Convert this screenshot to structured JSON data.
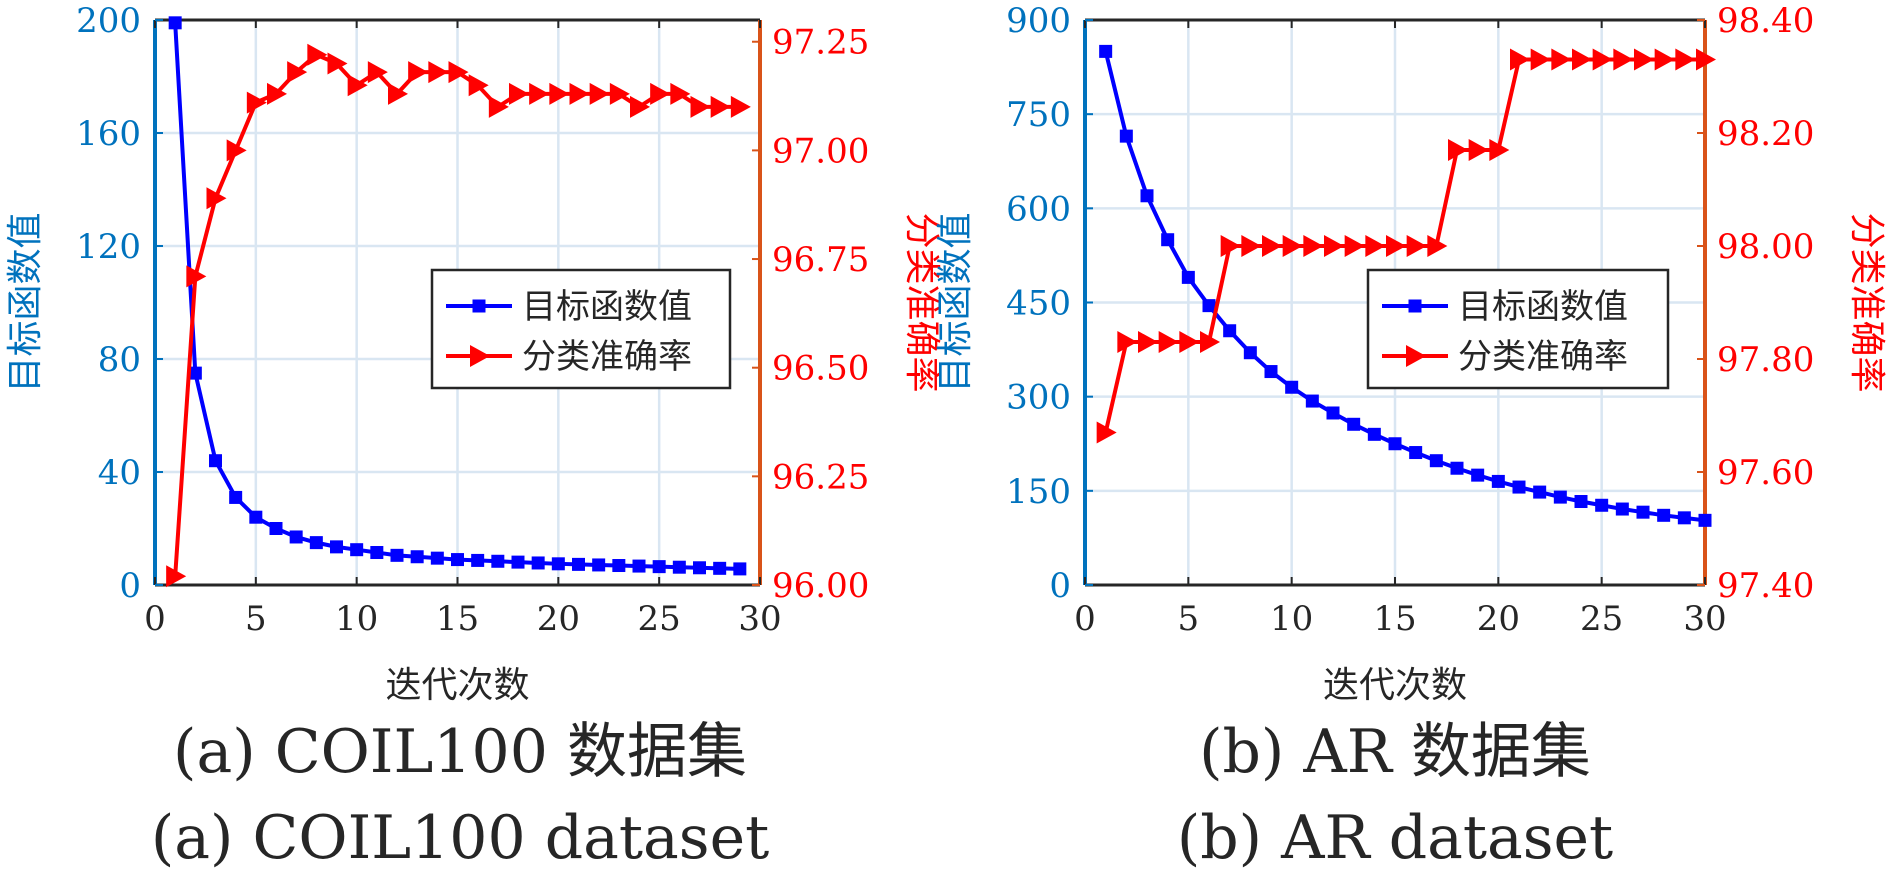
{
  "colors": {
    "left_axis": "#0072BD",
    "right_axis": "#D95319",
    "objective": "#0000FF",
    "accuracy": "#FF0000",
    "grid": "#D9E6F2"
  },
  "chart_data": [
    {
      "type": "line",
      "caption_cn": "(a) COIL100 数据集",
      "caption_en": "(a) COIL100 dataset",
      "xlabel": "迭代次数",
      "ylabel_left": "目标函数值",
      "ylabel_right": "分类准确率",
      "xlim": [
        0,
        30
      ],
      "xticks": [
        0,
        5,
        10,
        15,
        20,
        25,
        30
      ],
      "ylim_left": [
        0,
        200
      ],
      "yticks_left": [
        0,
        40,
        80,
        120,
        160,
        200
      ],
      "ylim_right": [
        96.0,
        97.3
      ],
      "yticks_right": [
        "96.00",
        "96.25",
        "96.50",
        "96.75",
        "97.00",
        "97.25"
      ],
      "legend_placement": "center-right",
      "series": [
        {
          "name": "目标函数值",
          "axis": "left",
          "marker": "square",
          "x": [
            1,
            2,
            3,
            4,
            5,
            6,
            7,
            8,
            9,
            10,
            11,
            12,
            13,
            14,
            15,
            16,
            17,
            18,
            19,
            20,
            21,
            22,
            23,
            24,
            25,
            26,
            27,
            28,
            29
          ],
          "values": [
            199,
            75,
            44,
            31,
            24,
            20,
            17,
            15,
            13.5,
            12.5,
            11.5,
            10.5,
            10,
            9.5,
            9,
            8.7,
            8.4,
            8.1,
            7.8,
            7.5,
            7.3,
            7.1,
            6.9,
            6.7,
            6.5,
            6.3,
            6.1,
            5.9,
            5.7
          ]
        },
        {
          "name": "分类准确率",
          "axis": "right",
          "marker": "triangle-right",
          "x": [
            1,
            2,
            3,
            4,
            5,
            6,
            7,
            8,
            9,
            10,
            11,
            12,
            13,
            14,
            15,
            16,
            17,
            18,
            19,
            20,
            21,
            22,
            23,
            24,
            25,
            26,
            27,
            28,
            29
          ],
          "values": [
            96.02,
            96.71,
            96.89,
            97.0,
            97.11,
            97.13,
            97.18,
            97.22,
            97.2,
            97.15,
            97.18,
            97.13,
            97.18,
            97.18,
            97.18,
            97.15,
            97.1,
            97.13,
            97.13,
            97.13,
            97.13,
            97.13,
            97.13,
            97.1,
            97.13,
            97.13,
            97.1,
            97.1,
            97.1
          ]
        }
      ]
    },
    {
      "type": "line",
      "caption_cn": "(b) AR 数据集",
      "caption_en": "(b) AR dataset",
      "xlabel": "迭代次数",
      "ylabel_left": "目标函数值",
      "ylabel_right": "分类准确率",
      "xlim": [
        0,
        30
      ],
      "xticks": [
        0,
        5,
        10,
        15,
        20,
        25,
        30
      ],
      "ylim_left": [
        0,
        900
      ],
      "yticks_left": [
        0,
        150,
        300,
        450,
        600,
        750,
        900
      ],
      "ylim_right": [
        97.4,
        98.4
      ],
      "yticks_right": [
        "97.40",
        "97.60",
        "97.80",
        "98.00",
        "98.20",
        "98.40"
      ],
      "legend_placement": "center-right",
      "series": [
        {
          "name": "目标函数值",
          "axis": "left",
          "marker": "square",
          "x": [
            1,
            2,
            3,
            4,
            5,
            6,
            7,
            8,
            9,
            10,
            11,
            12,
            13,
            14,
            15,
            16,
            17,
            18,
            19,
            20,
            21,
            22,
            23,
            24,
            25,
            26,
            27,
            28,
            29,
            30
          ],
          "values": [
            850,
            715,
            620,
            550,
            490,
            445,
            405,
            370,
            340,
            315,
            293,
            274,
            256,
            240,
            225,
            211,
            198,
            186,
            175,
            165,
            156,
            148,
            140,
            133,
            127,
            121,
            116,
            111,
            107,
            103
          ]
        },
        {
          "name": "分类准确率",
          "axis": "right",
          "marker": "triangle-right",
          "x": [
            1,
            2,
            3,
            4,
            5,
            6,
            7,
            8,
            9,
            10,
            11,
            12,
            13,
            14,
            15,
            16,
            17,
            18,
            19,
            20,
            21,
            22,
            23,
            24,
            25,
            26,
            27,
            28,
            29,
            30
          ],
          "values": [
            97.67,
            97.83,
            97.83,
            97.83,
            97.83,
            97.83,
            98.0,
            98.0,
            98.0,
            98.0,
            98.0,
            98.0,
            98.0,
            98.0,
            98.0,
            98.0,
            98.0,
            98.17,
            98.17,
            98.17,
            98.33,
            98.33,
            98.33,
            98.33,
            98.33,
            98.33,
            98.33,
            98.33,
            98.33,
            98.33
          ]
        }
      ]
    }
  ]
}
